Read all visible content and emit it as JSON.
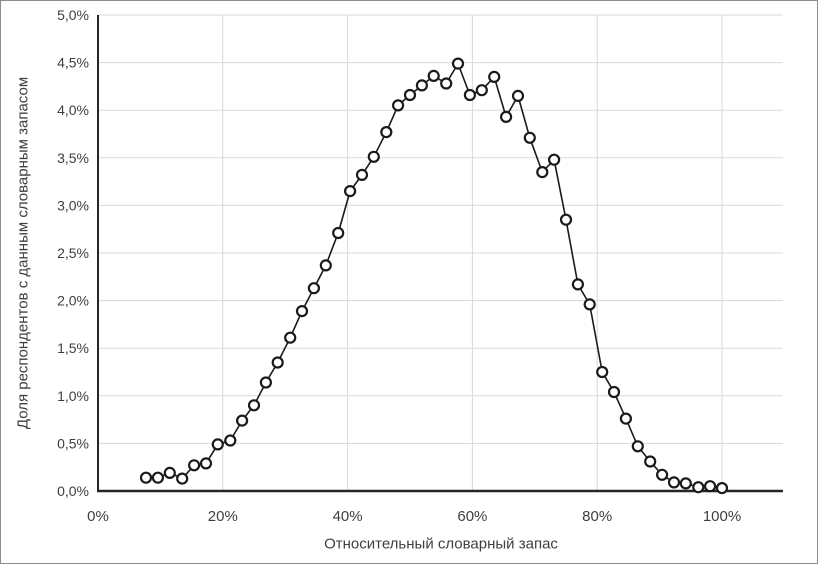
{
  "chart_data": {
    "type": "line",
    "title": "",
    "xlabel": "Относительный словарный запас",
    "ylabel": "Доля респондентов с данным словарным запасом",
    "xlim": [
      0,
      110
    ],
    "ylim": [
      0,
      5
    ],
    "grid": true,
    "legend": false,
    "x_ticks": [
      {
        "value": 0,
        "label": "0%"
      },
      {
        "value": 20,
        "label": "20%"
      },
      {
        "value": 40,
        "label": "40%"
      },
      {
        "value": 60,
        "label": "60%"
      },
      {
        "value": 80,
        "label": "80%"
      },
      {
        "value": 100,
        "label": "100%"
      }
    ],
    "y_ticks": [
      {
        "value": 0.0,
        "label": "0,0%"
      },
      {
        "value": 0.5,
        "label": "0,5%"
      },
      {
        "value": 1.0,
        "label": "1,0%"
      },
      {
        "value": 1.5,
        "label": "1,5%"
      },
      {
        "value": 2.0,
        "label": "2,0%"
      },
      {
        "value": 2.5,
        "label": "2,5%"
      },
      {
        "value": 3.0,
        "label": "3,0%"
      },
      {
        "value": 3.5,
        "label": "3,5%"
      },
      {
        "value": 4.0,
        "label": "4,0%"
      },
      {
        "value": 4.5,
        "label": "4,5%"
      },
      {
        "value": 5.0,
        "label": "5,0%"
      }
    ],
    "series": [
      {
        "marker": "circle",
        "points": [
          [
            7.7,
            0.14
          ],
          [
            9.6,
            0.14
          ],
          [
            11.5,
            0.19
          ],
          [
            13.5,
            0.13
          ],
          [
            15.4,
            0.27
          ],
          [
            17.3,
            0.29
          ],
          [
            19.2,
            0.49
          ],
          [
            21.2,
            0.53
          ],
          [
            23.1,
            0.74
          ],
          [
            25.0,
            0.9
          ],
          [
            26.9,
            1.14
          ],
          [
            28.8,
            1.35
          ],
          [
            30.8,
            1.61
          ],
          [
            32.7,
            1.89
          ],
          [
            34.6,
            2.13
          ],
          [
            36.5,
            2.37
          ],
          [
            38.5,
            2.71
          ],
          [
            40.4,
            3.15
          ],
          [
            42.3,
            3.32
          ],
          [
            44.2,
            3.51
          ],
          [
            46.2,
            3.77
          ],
          [
            48.1,
            4.05
          ],
          [
            50.0,
            4.16
          ],
          [
            51.9,
            4.26
          ],
          [
            53.8,
            4.36
          ],
          [
            55.8,
            4.28
          ],
          [
            57.7,
            4.49
          ],
          [
            59.6,
            4.16
          ],
          [
            61.5,
            4.21
          ],
          [
            63.5,
            4.35
          ],
          [
            65.4,
            3.93
          ],
          [
            67.3,
            4.15
          ],
          [
            69.2,
            3.71
          ],
          [
            71.2,
            3.35
          ],
          [
            73.1,
            3.48
          ],
          [
            75.0,
            2.85
          ],
          [
            76.9,
            2.17
          ],
          [
            78.8,
            1.96
          ],
          [
            80.8,
            1.25
          ],
          [
            82.7,
            1.04
          ],
          [
            84.6,
            0.76
          ],
          [
            86.5,
            0.47
          ],
          [
            88.5,
            0.31
          ],
          [
            90.4,
            0.17
          ],
          [
            92.3,
            0.09
          ],
          [
            94.2,
            0.08
          ],
          [
            96.2,
            0.04
          ],
          [
            98.1,
            0.05
          ],
          [
            100.0,
            0.03
          ]
        ]
      }
    ],
    "style": {
      "line_color": "#1a1a1a",
      "marker_fill": "#ffffff",
      "gridline_color": "#d9d9d9",
      "axis_color": "#262626",
      "text_color": "#3f3f3f",
      "background": "#ffffff"
    }
  }
}
